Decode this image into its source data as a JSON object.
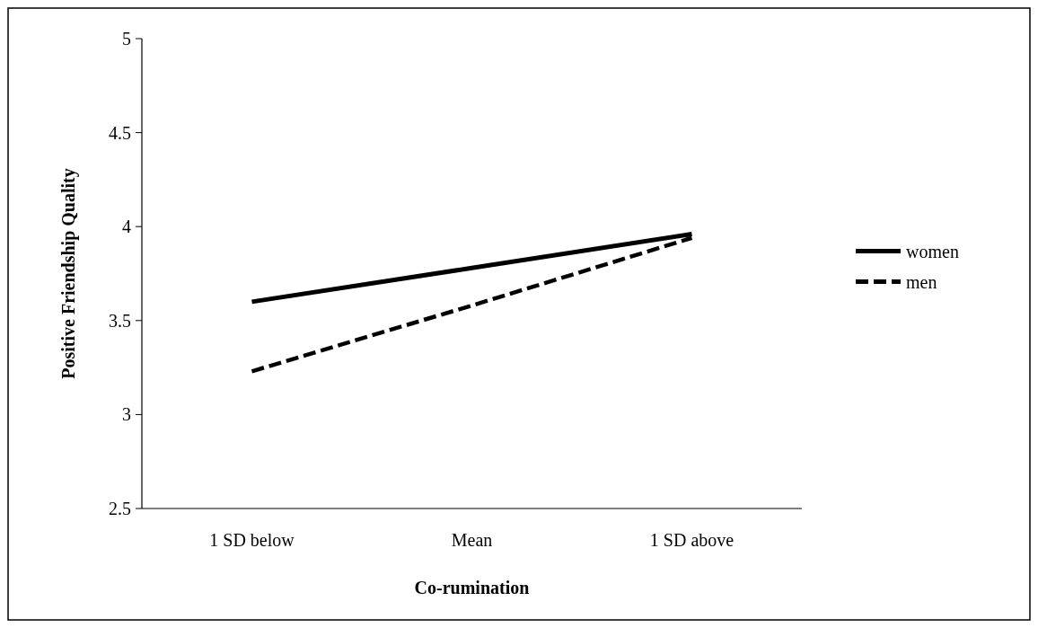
{
  "chart_data": {
    "type": "line",
    "xlabel": "Co-rumination",
    "ylabel": "Positive Friendship Quality",
    "categories": [
      "1 SD below",
      "Mean",
      "1 SD above"
    ],
    "series": [
      {
        "name": "women",
        "color": "#000000",
        "values": [
          3.6,
          3.78,
          3.96
        ],
        "line_style": "solid"
      },
      {
        "name": "men",
        "color": "#000000",
        "values": [
          3.23,
          3.58,
          3.94
        ],
        "line_style": "dashed"
      }
    ],
    "ylim": [
      2.5,
      5
    ],
    "yticks": [
      {
        "value": 2.5,
        "label": "2.5"
      },
      3,
      {
        "value": 3.5,
        "label": "3.5"
      },
      4,
      {
        "value": 4.5,
        "label": "4.5"
      },
      5
    ],
    "legend": "right",
    "grid": false,
    "marker": "none"
  }
}
